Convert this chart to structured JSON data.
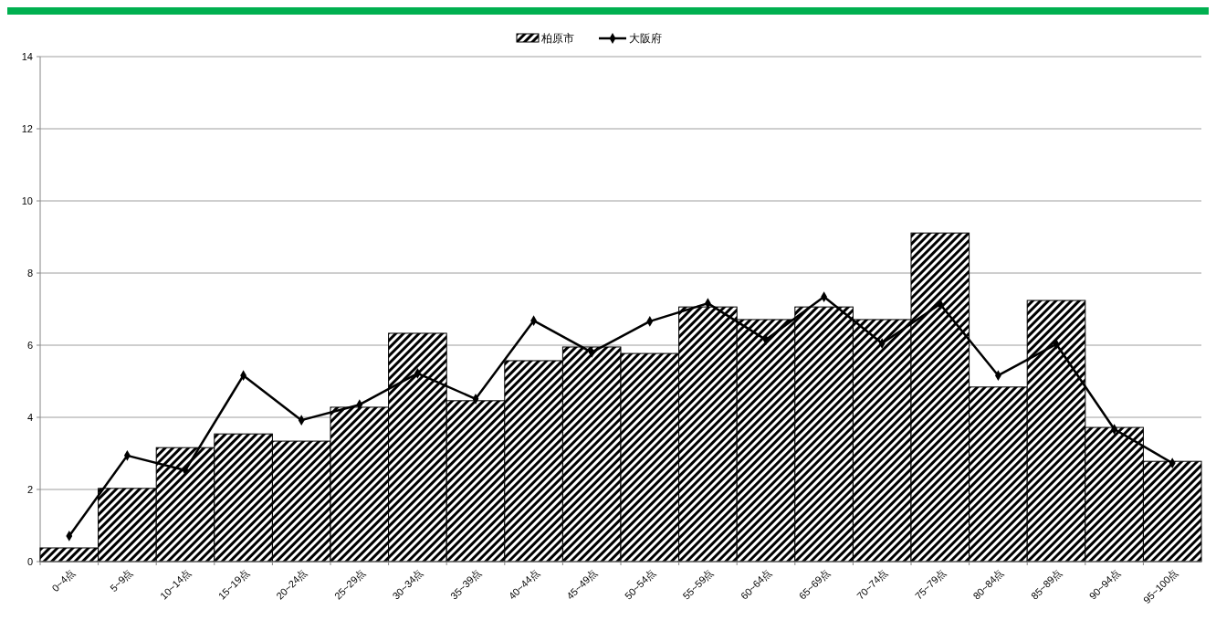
{
  "chart_data": {
    "type": "bar",
    "categories": [
      "0~4点",
      "5~9点",
      "10~14点",
      "15~19点",
      "20~24点",
      "25~29点",
      "30~34点",
      "35~39点",
      "40~44点",
      "45~49点",
      "50~54点",
      "55~59点",
      "60~64点",
      "65~69点",
      "70~74点",
      "75~79点",
      "80~84点",
      "85~89点",
      "90~94点",
      "95~100点"
    ],
    "series": [
      {
        "name": "柏原市",
        "color": "#000000",
        "values": [
          0.38,
          2.03,
          3.16,
          3.54,
          3.34,
          4.28,
          6.33,
          4.46,
          5.57,
          5.95,
          5.77,
          7.06,
          6.71,
          7.06,
          6.71,
          9.11,
          4.84,
          7.24,
          3.72,
          2.78
        ]
      },
      {
        "name": "大阪府",
        "type": "line",
        "color": "#000000",
        "marker": "diamond",
        "values": [
          0.71,
          2.94,
          2.53,
          5.16,
          3.92,
          4.35,
          5.22,
          4.51,
          6.68,
          5.8,
          6.66,
          7.16,
          6.15,
          7.34,
          6.05,
          7.14,
          5.16,
          6.03,
          3.67,
          2.73
        ]
      }
    ],
    "ylim": [
      0,
      14
    ],
    "yticks": [
      0,
      2,
      4,
      6,
      8,
      10,
      12,
      14
    ],
    "grid": "y",
    "legend": "top"
  }
}
